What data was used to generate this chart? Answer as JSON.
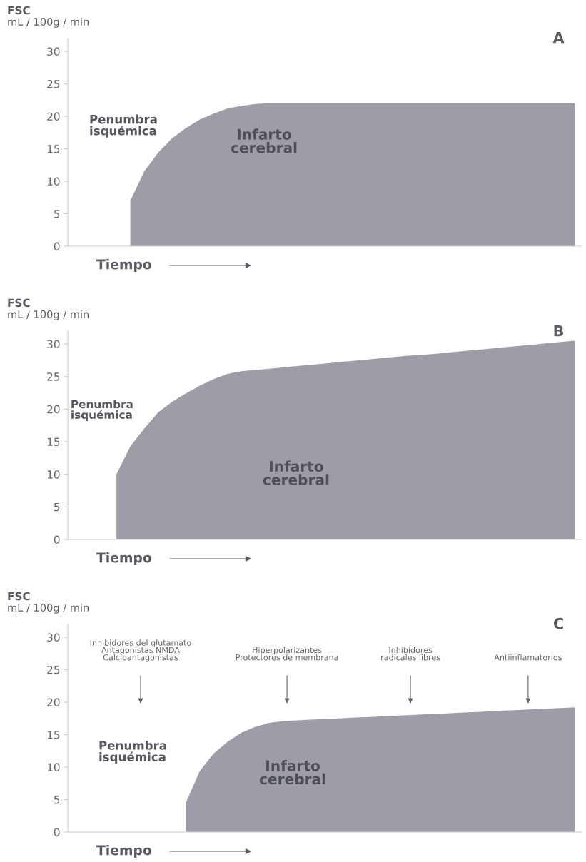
{
  "chart_data": [
    {
      "type": "area",
      "title": "A",
      "ylabel": "FSC\nmL / 100g / min",
      "xlabel": "Tiempo",
      "tick_labels": "y",
      "color": "#9c9da6",
      "ylim": [
        0,
        32
      ],
      "yticks": [
        0,
        5,
        10,
        15,
        20,
        25,
        30
      ],
      "categories": [
        null,
        null,
        null,
        null,
        null,
        null,
        null,
        null,
        null,
        null,
        null,
        null,
        null,
        null,
        null,
        null,
        null,
        null,
        null,
        null,
        null,
        null,
        null,
        null,
        null,
        null,
        null,
        null,
        null,
        null,
        null,
        null,
        null,
        null,
        null,
        null,
        null
      ],
      "values": [
        null,
        null,
        null,
        null,
        7,
        11.5,
        14.4,
        16.6,
        18.2,
        19.5,
        20.4,
        21.2,
        21.6,
        21.9,
        22,
        22,
        22,
        22,
        22,
        22,
        22,
        22,
        22,
        22,
        22,
        22,
        22,
        22,
        22,
        22,
        22,
        22,
        22,
        22,
        22,
        22,
        22
      ],
      "annotations": [
        "Penumbra\nisquémica",
        "Infarto\ncerebral"
      ]
    },
    {
      "type": "area",
      "title": "B",
      "ylabel": "FSC\nmL / 100g / min",
      "xlabel": "Tiempo",
      "tick_labels": "y",
      "color": "#9c9da6",
      "ylim": [
        0,
        32
      ],
      "yticks": [
        0,
        5,
        10,
        15,
        20,
        25,
        30
      ],
      "categories": [
        null,
        null,
        null,
        null,
        null,
        null,
        null,
        null,
        null,
        null,
        null,
        null,
        null,
        null,
        null,
        null,
        null,
        null,
        null,
        null,
        null,
        null,
        null,
        null,
        null,
        null,
        null,
        null,
        null,
        null,
        null,
        null,
        null,
        null,
        null,
        null,
        null
      ],
      "values": [
        null,
        null,
        null,
        10,
        14.3,
        17,
        19.5,
        21.1,
        22.4,
        23.6,
        24.6,
        25.4,
        25.8,
        26,
        26.2,
        26.4,
        26.6,
        26.8,
        27,
        27.2,
        27.4,
        27.6,
        27.8,
        28,
        28.2,
        28.3,
        28.5,
        28.7,
        28.9,
        29.1,
        29.3,
        29.5,
        29.7,
        29.9,
        30.1,
        30.3,
        30.5
      ],
      "annotations": [
        "Penumbra\nisquémica",
        "Infarto\ncerebral"
      ]
    },
    {
      "type": "area",
      "title": "C",
      "ylabel": "FSC\nmL / 100g / min",
      "xlabel": "Tiempo",
      "tick_labels": "y",
      "color": "#9c9da6",
      "ylim": [
        0,
        32
      ],
      "yticks": [
        0,
        5,
        10,
        15,
        20,
        25,
        30
      ],
      "categories": [
        null,
        null,
        null,
        null,
        null,
        null,
        null,
        null,
        null,
        null,
        null,
        null,
        null,
        null,
        null,
        null,
        null,
        null,
        null,
        null,
        null,
        null,
        null,
        null,
        null,
        null,
        null,
        null,
        null,
        null,
        null,
        null,
        null,
        null,
        null,
        null,
        null
      ],
      "values": [
        null,
        null,
        null,
        null,
        null,
        null,
        null,
        null,
        4.5,
        9.4,
        12.1,
        13.9,
        15.3,
        16.2,
        16.8,
        17.1,
        17.2,
        17.3,
        17.4,
        17.5,
        17.6,
        17.7,
        17.8,
        17.9,
        18,
        18.1,
        18.2,
        18.3,
        18.4,
        18.5,
        18.6,
        18.7,
        18.8,
        18.9,
        19,
        19.1,
        19.2
      ],
      "annotations": [
        "Penumbra\nisquémica",
        "Infarto\ncerebral",
        "Inhibidores del glutamato\nAntagonistas NMDA\nCalcioantagonistas",
        "Hiperpolarizantes\nProtectores de membrana",
        "Inhibidores\nradicales libres",
        "Antiinflamatorios"
      ]
    }
  ]
}
